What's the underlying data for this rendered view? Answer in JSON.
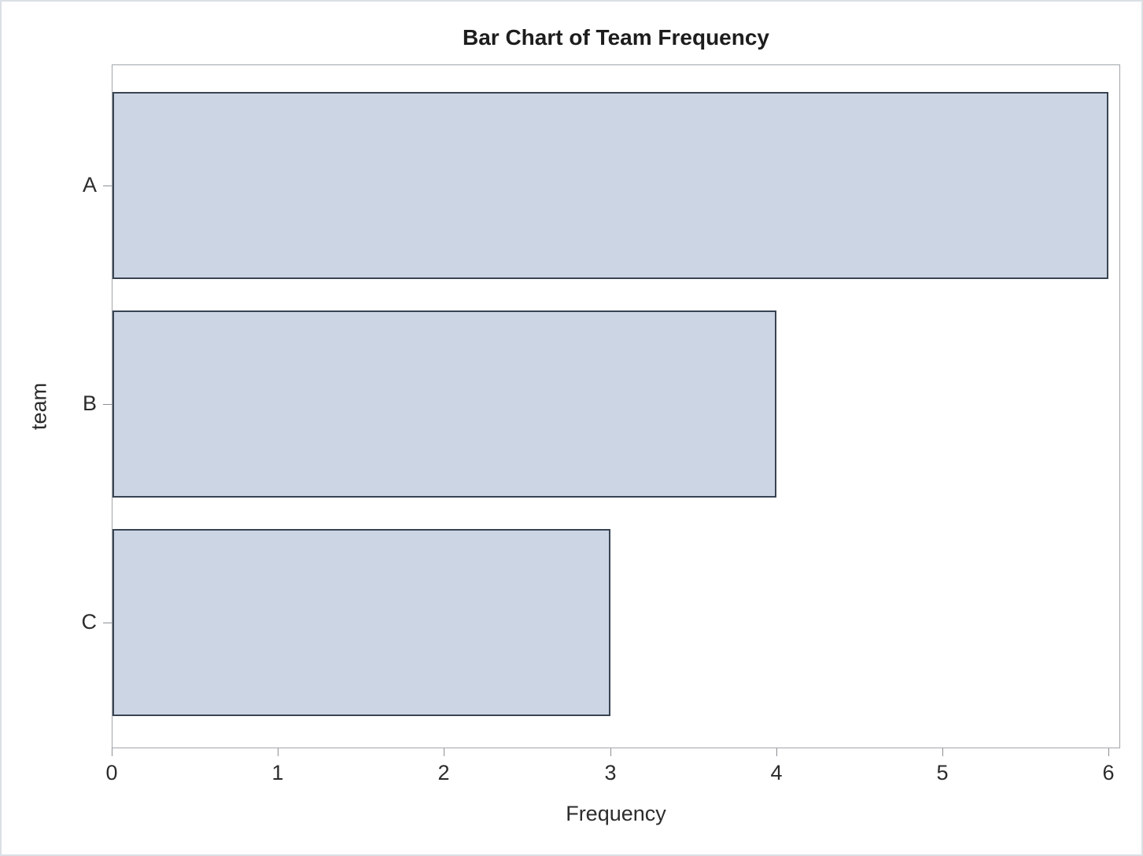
{
  "chart_data": {
    "type": "bar",
    "orientation": "horizontal",
    "title": "Bar Chart of Team Frequency",
    "categories": [
      "A",
      "B",
      "C"
    ],
    "values": [
      6,
      4,
      3
    ],
    "xlabel": "Frequency",
    "ylabel": "team",
    "xlim": [
      0,
      6
    ],
    "xticks": [
      0,
      1,
      2,
      3,
      4,
      5,
      6
    ],
    "grid": false,
    "legend": "none",
    "colors": {
      "bar_fill": "#ccd5e3",
      "bar_border": "#394452",
      "wall_border": "#a1a5aa",
      "tick_mark": "#8c9095",
      "text": "#2c2c2c",
      "title_text": "#1d1d1d",
      "background": "#ffffff"
    }
  }
}
